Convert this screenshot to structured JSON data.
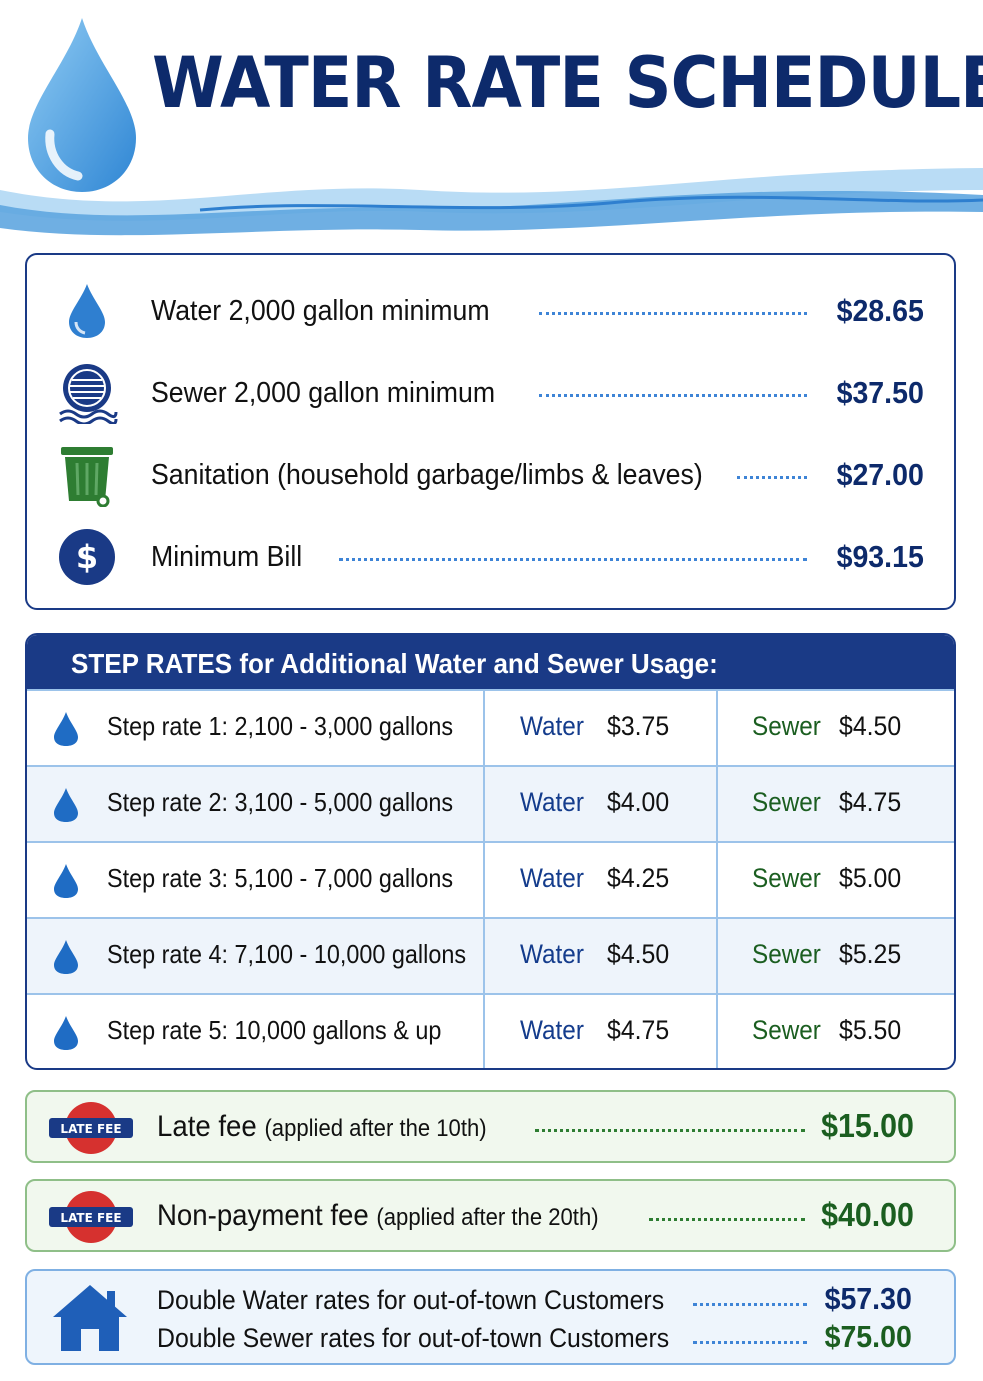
{
  "header": {
    "title": "WATER RATE SCHEDULE",
    "logo_icon": "water-drop-icon",
    "colors": {
      "title": "#0d2a6b",
      "wave_light": "#a8d4f2",
      "wave_dark": "#3f8fd6"
    }
  },
  "summary": {
    "items": [
      {
        "icon": "water-drop-icon",
        "label": "Water 2,000 gallon minimum",
        "price": "$28.65"
      },
      {
        "icon": "sewer-icon",
        "label": "Sewer 2,000  gallon minimum",
        "price": "$37.50"
      },
      {
        "icon": "garbage-bin-icon",
        "label": "Sanitation (household garbage/limbs & leaves)",
        "price": "$27.00"
      },
      {
        "icon": "dollar-icon",
        "label": "Minimum Bill",
        "price": "$93.15"
      }
    ]
  },
  "steps": {
    "heading": "STEP RATES for Additional Water and Sewer Usage:",
    "water_label": "Water",
    "sewer_label": "Sewer",
    "rows": [
      {
        "label": "Step rate 1:  2,100 - 3,000 gallons",
        "water": "$3.75",
        "sewer": "$4.50"
      },
      {
        "label": "Step rate 2:  3,100 - 5,000 gallons",
        "water": "$4.00",
        "sewer": "$4.75"
      },
      {
        "label": "Step rate 3:  5,100 - 7,000 gallons",
        "water": "$4.25",
        "sewer": "$5.00"
      },
      {
        "label": "Step rate 4:  7,100 - 10,000 gallons",
        "water": "$4.50",
        "sewer": "$5.25"
      },
      {
        "label": "Step rate 5:  10,000 gallons & up",
        "water": "$4.75",
        "sewer": "$5.50"
      }
    ],
    "colors": {
      "header_bg": "#1a3a86",
      "water_text": "#143c8c",
      "sewer_text": "#1b5e20"
    }
  },
  "fees": [
    {
      "badge": "LATE FEE",
      "label": "Late fee",
      "note": "(applied after the 10th)",
      "price": "$15.00"
    },
    {
      "badge": "LATE FEE",
      "label": "Non-payment fee",
      "note": "(applied after the 20th)",
      "price": "$40.00"
    }
  ],
  "out_of_town": {
    "icon": "house-icon",
    "rows": [
      {
        "label": "Double Water rates for out-of-town Customers",
        "price": "$57.30",
        "color": "#0d2a6b"
      },
      {
        "label": "Double Sewer rates for out-of-town Customers",
        "price": "$75.00",
        "color": "#1b5e20"
      }
    ]
  }
}
